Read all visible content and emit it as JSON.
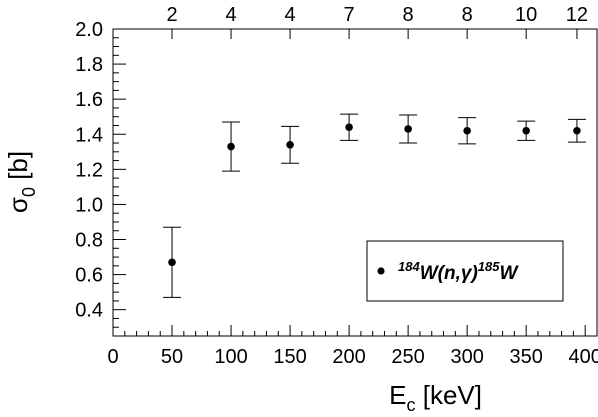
{
  "chart_data": {
    "type": "scatter",
    "x": [
      50,
      100,
      150,
      200,
      250,
      300,
      350,
      393
    ],
    "y": [
      0.67,
      1.33,
      1.34,
      1.44,
      1.43,
      1.42,
      1.42,
      1.42
    ],
    "y_err": [
      0.2,
      0.14,
      0.105,
      0.075,
      0.08,
      0.075,
      0.055,
      0.065
    ],
    "top_labels": [
      "2",
      "4",
      "4",
      "7",
      "8",
      "8",
      "10",
      "12"
    ],
    "xlim": [
      0,
      410
    ],
    "ylim": [
      0.25,
      2.0
    ],
    "xticks": [
      "0",
      "50",
      "100",
      "150",
      "200",
      "250",
      "300",
      "350",
      "400"
    ],
    "yticks": [
      "0.4",
      "0.6",
      "0.8",
      "1.0",
      "1.2",
      "1.4",
      "1.6",
      "1.8",
      "2.0"
    ],
    "xlabel_main": "E",
    "xlabel_sub": "c",
    "xlabel_unit": " [keV]",
    "ylabel_main": "σ",
    "ylabel_sub": "0",
    "ylabel_unit": " [b]",
    "legend": {
      "marker": "•",
      "label_parts": [
        "184",
        "W(n,",
        "γ",
        ")",
        "185",
        "W"
      ],
      "placement": "lower-right"
    },
    "grid": false,
    "colors": {
      "marker": "#000000",
      "axis": "#000000",
      "background": "#ffffff"
    }
  }
}
